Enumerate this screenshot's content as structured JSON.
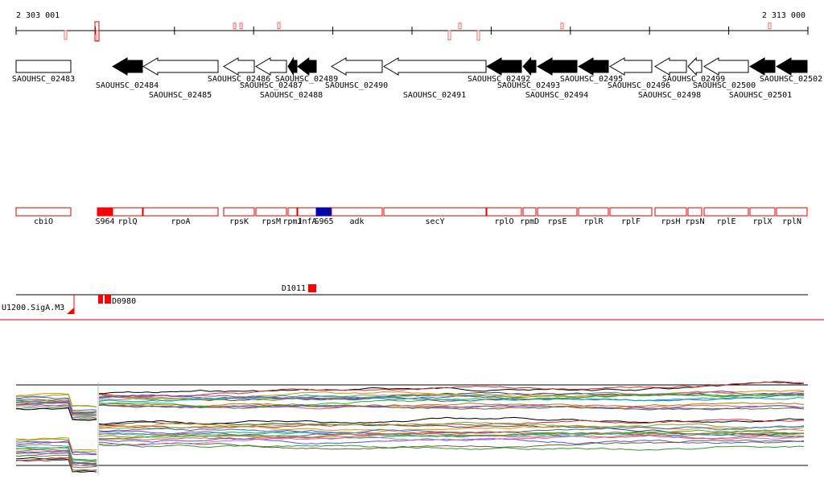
{
  "ruler": {
    "start": "2 303 001",
    "end": "2 313 000"
  },
  "locus_tags": [
    "SAOUHSC_02483",
    "SAOUHSC_02484",
    "SAOUHSC_02485",
    "SAOUHSC_02486",
    "SAOUHSC_02487",
    "SAOUHSC_02488",
    "SAOUHSC_02489",
    "SAOUHSC_02490",
    "SAOUHSC_02491",
    "SAOUHSC_02492",
    "SAOUHSC_02493",
    "SAOUHSC_02494",
    "SAOUHSC_02495",
    "SAOUHSC_02496",
    "SAOUHSC_02498",
    "SAOUHSC_02499",
    "SAOUHSC_02500",
    "SAOUHSC_02501",
    "SAOUHSC_02502"
  ],
  "gene_names": [
    "cbiO",
    "S964",
    "rplQ",
    "rpoA",
    "rpsK",
    "rpsM",
    "rpmJ",
    "infA",
    "S965",
    "adk",
    "secY",
    "rplO",
    "rpmD",
    "rpsE",
    "rplR",
    "rplF",
    "rpsH",
    "rpsN",
    "rplE",
    "rplX",
    "rplN"
  ],
  "features": {
    "terminator": "D1011",
    "operon": "D0980",
    "promoter": "U1200.SigA.M3"
  }
}
